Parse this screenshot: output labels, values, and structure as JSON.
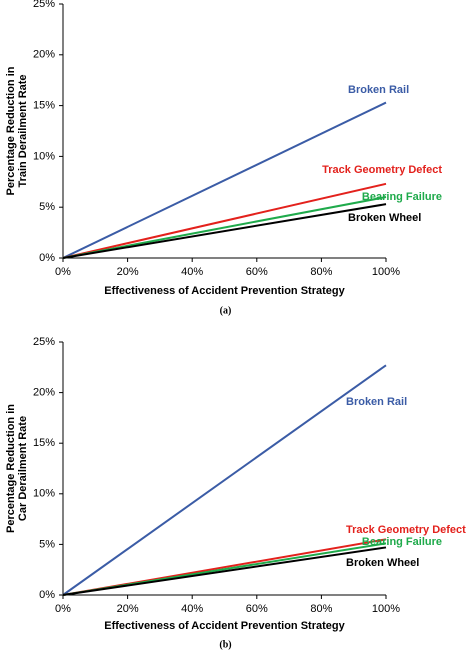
{
  "chart_data": [
    {
      "type": "line",
      "ylabel": [
        "Percentage Reduction in",
        "Train Derailment Rate"
      ],
      "xlabel": "Effectiveness of Accident Prevention Strategy",
      "caption": "(a)",
      "x": [
        0,
        100
      ],
      "xlim": [
        0,
        100
      ],
      "xticks": [
        {
          "value": 0,
          "label": "0%"
        },
        {
          "value": 20,
          "label": "20%"
        },
        {
          "value": 40,
          "label": "40%"
        },
        {
          "value": 60,
          "label": "60%"
        },
        {
          "value": 80,
          "label": "80%"
        },
        {
          "value": 100,
          "label": "100%"
        }
      ],
      "ylim": [
        0,
        25
      ],
      "yticks": [
        {
          "value": 0,
          "label": "0%"
        },
        {
          "value": 5,
          "label": "5%"
        },
        {
          "value": 10,
          "label": "10%"
        },
        {
          "value": 15,
          "label": "15%"
        },
        {
          "value": 20,
          "label": "20%"
        },
        {
          "value": 25,
          "label": "25%"
        }
      ],
      "series": [
        {
          "name": "Broken Rail",
          "color": "#3b5ca6",
          "values": [
            0,
            15.3
          ]
        },
        {
          "name": "Track Geometry Defect",
          "color": "#e3211c",
          "values": [
            0,
            7.3
          ]
        },
        {
          "name": "Bearing Failure",
          "color": "#1faa4b",
          "values": [
            0,
            6.0
          ]
        },
        {
          "name": "Broken Wheel",
          "color": "#000000",
          "values": [
            0,
            5.3
          ]
        }
      ]
    },
    {
      "type": "line",
      "ylabel": [
        "Percentage Reduction in",
        "Car Derailment Rate"
      ],
      "xlabel": "Effectiveness of Accident Prevention Strategy",
      "caption": "(b)",
      "x": [
        0,
        100
      ],
      "xlim": [
        0,
        100
      ],
      "xticks": [
        {
          "value": 0,
          "label": "0%"
        },
        {
          "value": 20,
          "label": "20%"
        },
        {
          "value": 40,
          "label": "40%"
        },
        {
          "value": 60,
          "label": "60%"
        },
        {
          "value": 80,
          "label": "80%"
        },
        {
          "value": 100,
          "label": "100%"
        }
      ],
      "ylim": [
        0,
        25
      ],
      "yticks": [
        {
          "value": 0,
          "label": "0%"
        },
        {
          "value": 5,
          "label": "5%"
        },
        {
          "value": 10,
          "label": "10%"
        },
        {
          "value": 15,
          "label": "15%"
        },
        {
          "value": 20,
          "label": "20%"
        },
        {
          "value": 25,
          "label": "25%"
        }
      ],
      "series": [
        {
          "name": "Broken Rail",
          "color": "#3b5ca6",
          "values": [
            0,
            22.7
          ]
        },
        {
          "name": "Track Geometry Defect",
          "color": "#e3211c",
          "values": [
            0,
            5.5
          ]
        },
        {
          "name": "Bearing Failure",
          "color": "#1faa4b",
          "values": [
            0,
            5.1
          ]
        },
        {
          "name": "Broken Wheel",
          "color": "#000000",
          "values": [
            0,
            4.7
          ]
        }
      ]
    }
  ]
}
